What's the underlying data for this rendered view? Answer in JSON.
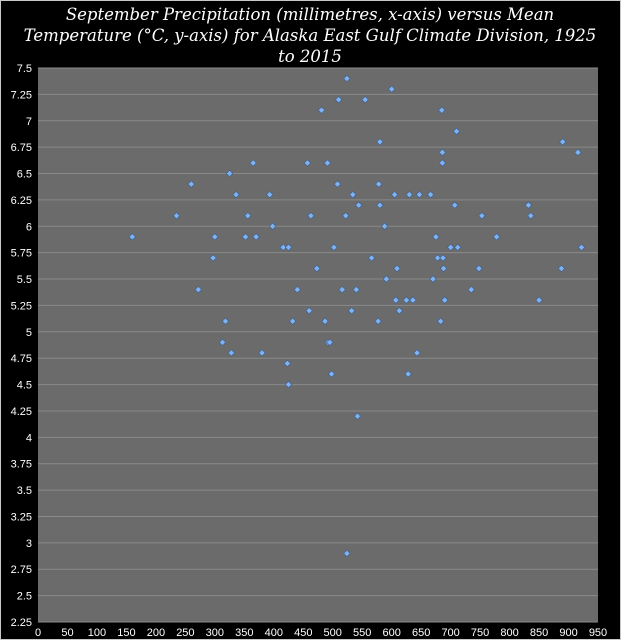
{
  "chart_data": {
    "type": "scatter",
    "title": "September Precipitation (millimetres, x-axis) versus Mean Temperature (°C, y-axis) for Alaska East Gulf Climate Division, 1925 to 2015",
    "xlabel": "",
    "ylabel": "",
    "xlim": [
      0,
      950
    ],
    "ylim": [
      2.25,
      7.5
    ],
    "xticks": [
      "0",
      "50",
      "100",
      "150",
      "200",
      "250",
      "300",
      "350",
      "400",
      "450",
      "500",
      "550",
      "600",
      "650",
      "700",
      "750",
      "800",
      "850",
      "900",
      "950"
    ],
    "yticks": [
      "2.25",
      "2.5",
      "2.75",
      "3",
      "3.25",
      "3.5",
      "3.75",
      "4",
      "4.25",
      "4.5",
      "4.75",
      "5",
      "5.25",
      "5.5",
      "5.75",
      "6",
      "6.25",
      "6.5",
      "6.75",
      "7",
      "7.25",
      "7.5"
    ],
    "grid": true,
    "legend": "none",
    "colors": {
      "plot_bg": "#6b6b6b",
      "grid": "#8a8a8a",
      "marker": "#7fb2f0",
      "page_bg": "#000000",
      "text": "#ffffff"
    },
    "points": [
      [
        160,
        5.9
      ],
      [
        235,
        6.1
      ],
      [
        260,
        6.4
      ],
      [
        272,
        5.4
      ],
      [
        297,
        5.7
      ],
      [
        300,
        5.9
      ],
      [
        313,
        4.9
      ],
      [
        318,
        5.1
      ],
      [
        325,
        6.5
      ],
      [
        328,
        4.8
      ],
      [
        336,
        6.3
      ],
      [
        352,
        5.9
      ],
      [
        356,
        6.1
      ],
      [
        365,
        6.6
      ],
      [
        370,
        5.9
      ],
      [
        380,
        4.8
      ],
      [
        393,
        6.3
      ],
      [
        398,
        6.0
      ],
      [
        416,
        5.8
      ],
      [
        423,
        4.7
      ],
      [
        425,
        4.5
      ],
      [
        425,
        5.8
      ],
      [
        432,
        5.1
      ],
      [
        440,
        5.4
      ],
      [
        457,
        6.6
      ],
      [
        460,
        5.2
      ],
      [
        463,
        6.1
      ],
      [
        473,
        5.6
      ],
      [
        481,
        7.1
      ],
      [
        487,
        5.1
      ],
      [
        491,
        6.6
      ],
      [
        492,
        4.9
      ],
      [
        495,
        4.9
      ],
      [
        498,
        4.6
      ],
      [
        502,
        5.8
      ],
      [
        508,
        6.4
      ],
      [
        510,
        7.2
      ],
      [
        516,
        5.4
      ],
      [
        522,
        6.1
      ],
      [
        524,
        7.4
      ],
      [
        524,
        2.9
      ],
      [
        532,
        5.2
      ],
      [
        534,
        6.3
      ],
      [
        540,
        5.4
      ],
      [
        542,
        4.2
      ],
      [
        544,
        6.2
      ],
      [
        555,
        7.2
      ],
      [
        566,
        5.7
      ],
      [
        577,
        5.1
      ],
      [
        578,
        6.4
      ],
      [
        580,
        6.8
      ],
      [
        580,
        6.2
      ],
      [
        588,
        6.0
      ],
      [
        591,
        5.5
      ],
      [
        600,
        7.3
      ],
      [
        605,
        6.3
      ],
      [
        607,
        5.3
      ],
      [
        609,
        5.6
      ],
      [
        613,
        5.2
      ],
      [
        625,
        5.3
      ],
      [
        628,
        4.6
      ],
      [
        630,
        6.3
      ],
      [
        636,
        5.3
      ],
      [
        643,
        4.8
      ],
      [
        647,
        6.3
      ],
      [
        666,
        6.3
      ],
      [
        670,
        5.5
      ],
      [
        675,
        5.9
      ],
      [
        678,
        5.7
      ],
      [
        683,
        5.1
      ],
      [
        685,
        7.1
      ],
      [
        686,
        6.7
      ],
      [
        686,
        6.6
      ],
      [
        687,
        5.7
      ],
      [
        688,
        5.6
      ],
      [
        690,
        5.3
      ],
      [
        700,
        5.8
      ],
      [
        707,
        6.2
      ],
      [
        710,
        6.9
      ],
      [
        712,
        5.8
      ],
      [
        735,
        5.4
      ],
      [
        748,
        5.6
      ],
      [
        753,
        6.1
      ],
      [
        778,
        5.9
      ],
      [
        832,
        6.2
      ],
      [
        836,
        6.1
      ],
      [
        850,
        5.3
      ],
      [
        888,
        5.6
      ],
      [
        890,
        6.8
      ],
      [
        916,
        6.7
      ],
      [
        922,
        5.8
      ]
    ]
  }
}
